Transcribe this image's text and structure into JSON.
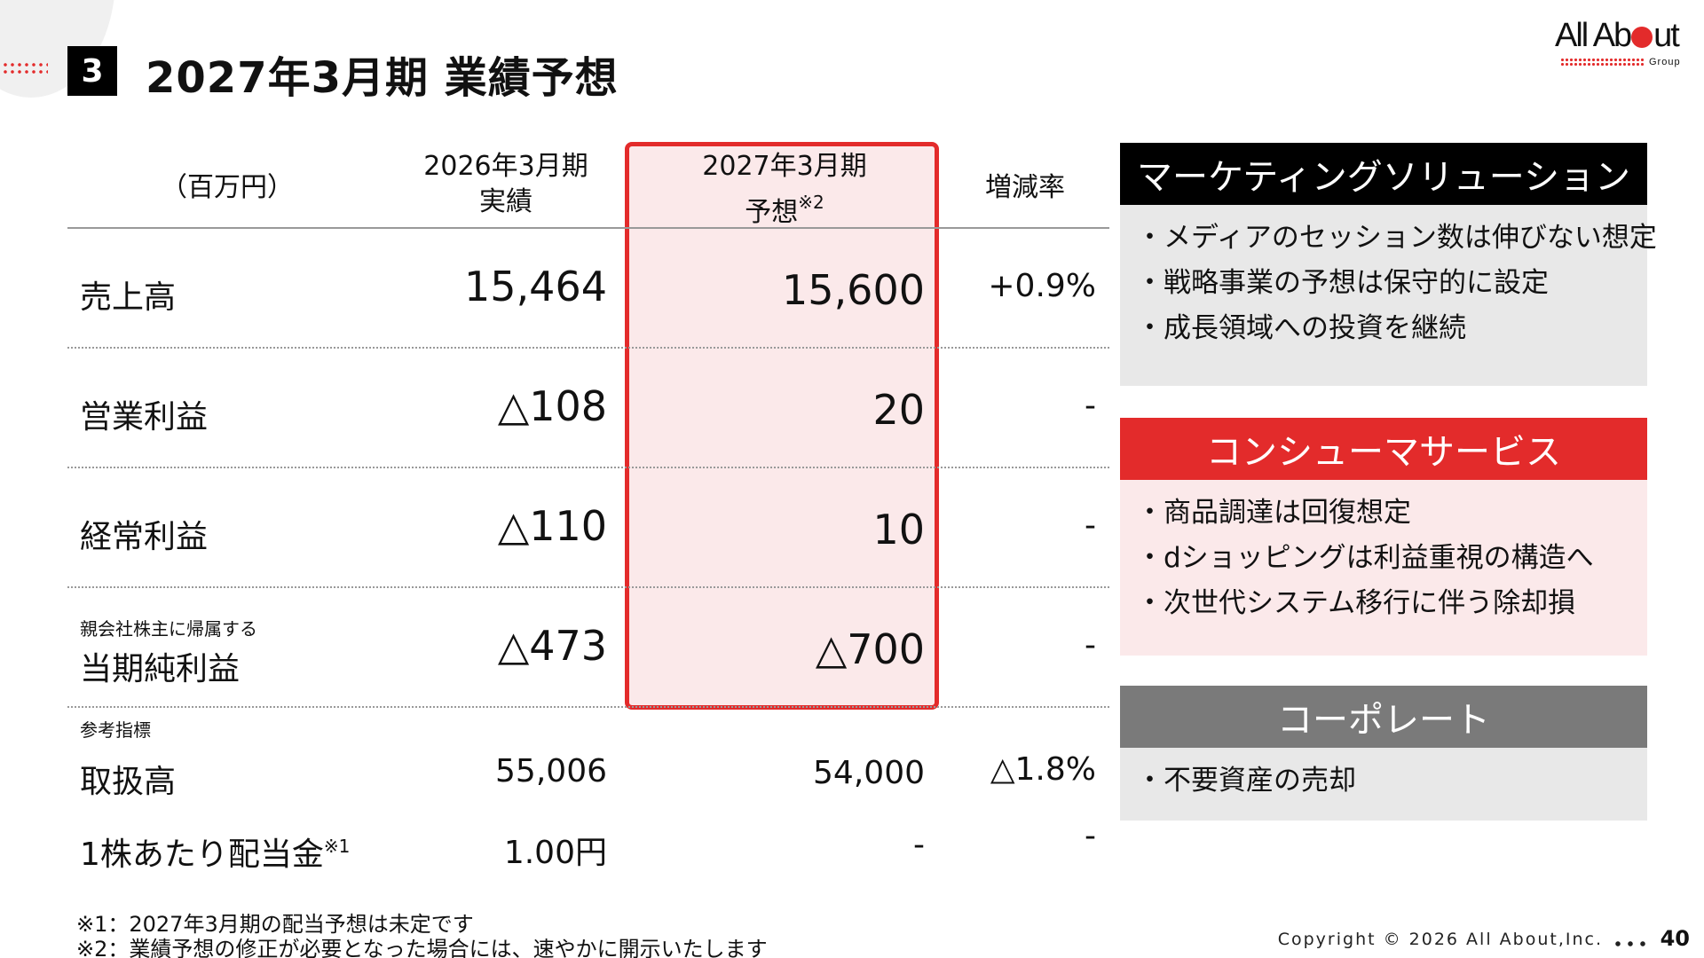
{
  "header": {
    "section_number": "3",
    "title": "2027年3月期 業績予想"
  },
  "logo": {
    "text_before": "All Ab",
    "text_after": "ut",
    "group": "Group",
    "brand_color": "#e32b2b"
  },
  "table": {
    "unit_label": "（百万円）",
    "columns": {
      "actual_line1": "2026年3月期",
      "actual_line2": "実績",
      "forecast_line1": "2027年3月期",
      "forecast_line2": "予想",
      "forecast_note": "※2",
      "rate": "増減率"
    },
    "rows": [
      {
        "label": "売上高",
        "actual": "15,464",
        "forecast": "15,600",
        "rate": "+0.9%"
      },
      {
        "label": "営業利益",
        "actual": "△108",
        "forecast": "20",
        "rate": "-"
      },
      {
        "label": "経常利益",
        "actual": "△110",
        "forecast": "10",
        "rate": "-"
      },
      {
        "sublabel": "親会社株主に帰属する",
        "label": "当期純利益",
        "actual": "△473",
        "forecast": "△700",
        "rate": "-"
      }
    ],
    "reference_label": "参考指標",
    "reference_rows": [
      {
        "label": "取扱高",
        "actual": "55,006",
        "forecast": "54,000",
        "rate": "△1.8%"
      },
      {
        "label": "1株あたり配当金",
        "note": "※1",
        "actual": "1.00円",
        "forecast": "-",
        "rate": "-"
      }
    ],
    "highlight_color": "#e32b2b"
  },
  "segments": [
    {
      "title": "マーケティングソリューション",
      "title_bg": "#000000",
      "body_bg": "#e8e8e8",
      "bullets": [
        "・メディアのセッション数は伸びない想定",
        "・戦略事業の予想は保守的に設定",
        "・成長領域への投資を継続"
      ]
    },
    {
      "title": "コンシューマサービス",
      "title_bg": "#e32b2b",
      "body_bg": "#fbe9ea",
      "bullets": [
        "・商品調達は回復想定",
        "・dショッピングは利益重視の構造へ",
        "・次世代システム移行に伴う除却損"
      ]
    },
    {
      "title": "コーポレート",
      "title_bg": "#7a7a7a",
      "body_bg": "#e8e8e8",
      "bullets": [
        "・不要資産の売却"
      ]
    }
  ],
  "footnotes": [
    "※1：2027年3月期の配当予想は未定です",
    "※2：業績予想の修正が必要となった場合には、速やかに開示いたします"
  ],
  "footer": {
    "copyright": "Copyright © 2026 All About,Inc.",
    "page": "40"
  }
}
